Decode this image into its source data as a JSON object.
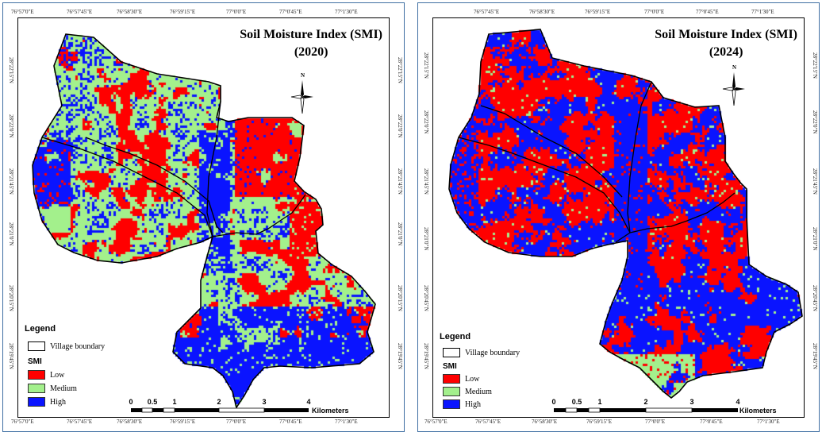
{
  "maps": [
    {
      "title_line1": "Soil Moisture Index (SMI)",
      "title_line2": "(2020)",
      "north_label": "N",
      "top_ticks": [
        "76°57'0\"E",
        "76°57'45\"E",
        "76°58'30\"E",
        "76°59'15\"E",
        "77°0'0\"E",
        "77°0'45\"E",
        "77°1'30\"E"
      ],
      "bottom_ticks": [
        "76°57'0\"E",
        "76°57'45\"E",
        "76°58'30\"E",
        "76°59'15\"E",
        "77°0'0\"E",
        "77°0'45\"E",
        "77°1'30\"E"
      ],
      "left_ticks": [
        "28°22'15\"N",
        "28°22'0\"N",
        "28°21'45\"N",
        "28°21'0\"N",
        "28°20'15\"N",
        "28°19'45\"N"
      ],
      "right_ticks": [
        "28°22'15\"N",
        "28°22'0\"N",
        "28°21'45\"N",
        "28°21'0\"N",
        "28°20'15\"N",
        "28°19'45\"N"
      ],
      "legend": {
        "title": "Legend",
        "boundary_label": "Village boundary",
        "smi_title": "SMI",
        "classes": [
          {
            "label": "Low",
            "color": "#ff0000"
          },
          {
            "label": "Medium",
            "color": "#a3f08c"
          },
          {
            "label": "High",
            "color": "#0a14ff"
          }
        ]
      },
      "scale": {
        "labels": [
          "0",
          "0.5",
          "1",
          "2",
          "3",
          "4"
        ],
        "unit": "Kilometers"
      },
      "class_shares": {
        "low": 0.33,
        "medium": 0.33,
        "high": 0.34
      }
    },
    {
      "title_line1": "Soil Moisture Index (SMI)",
      "title_line2": "(2024)",
      "north_label": "N",
      "top_ticks": [
        "76°57'45\"E",
        "76°58'30\"E",
        "76°59'15\"E",
        "77°0'0\"E",
        "77°0'45\"E",
        "77°1'30\"E"
      ],
      "bottom_ticks": [
        "76°57'0\"E",
        "76°57'45\"E",
        "76°58'30\"E",
        "76°59'15\"E",
        "77°0'0\"E",
        "77°0'45\"E",
        "77°1'30\"E"
      ],
      "left_ticks": [
        "28°22'15\"N",
        "28°22'0\"N",
        "28°21'45\"N",
        "28°21'0\"N",
        "28°20'45\"N",
        "28°19'45\"N"
      ],
      "right_ticks": [
        "28°22'15\"N",
        "28°22'0\"N",
        "28°21'45\"N",
        "28°21'0\"N",
        "28°20'45\"N",
        "28°19'45\"N"
      ],
      "legend": {
        "title": "Legend",
        "boundary_label": "Village boundary",
        "smi_title": "SMI",
        "classes": [
          {
            "label": "Low",
            "color": "#ff0000"
          },
          {
            "label": "Medium",
            "color": "#a3f08c"
          },
          {
            "label": "High",
            "color": "#0a14ff"
          }
        ]
      },
      "scale": {
        "labels": [
          "0",
          "0.5",
          "1",
          "2",
          "3",
          "4"
        ],
        "unit": "Kilometers"
      },
      "class_shares": {
        "low": 0.34,
        "medium": 0.13,
        "high": 0.53
      }
    }
  ]
}
